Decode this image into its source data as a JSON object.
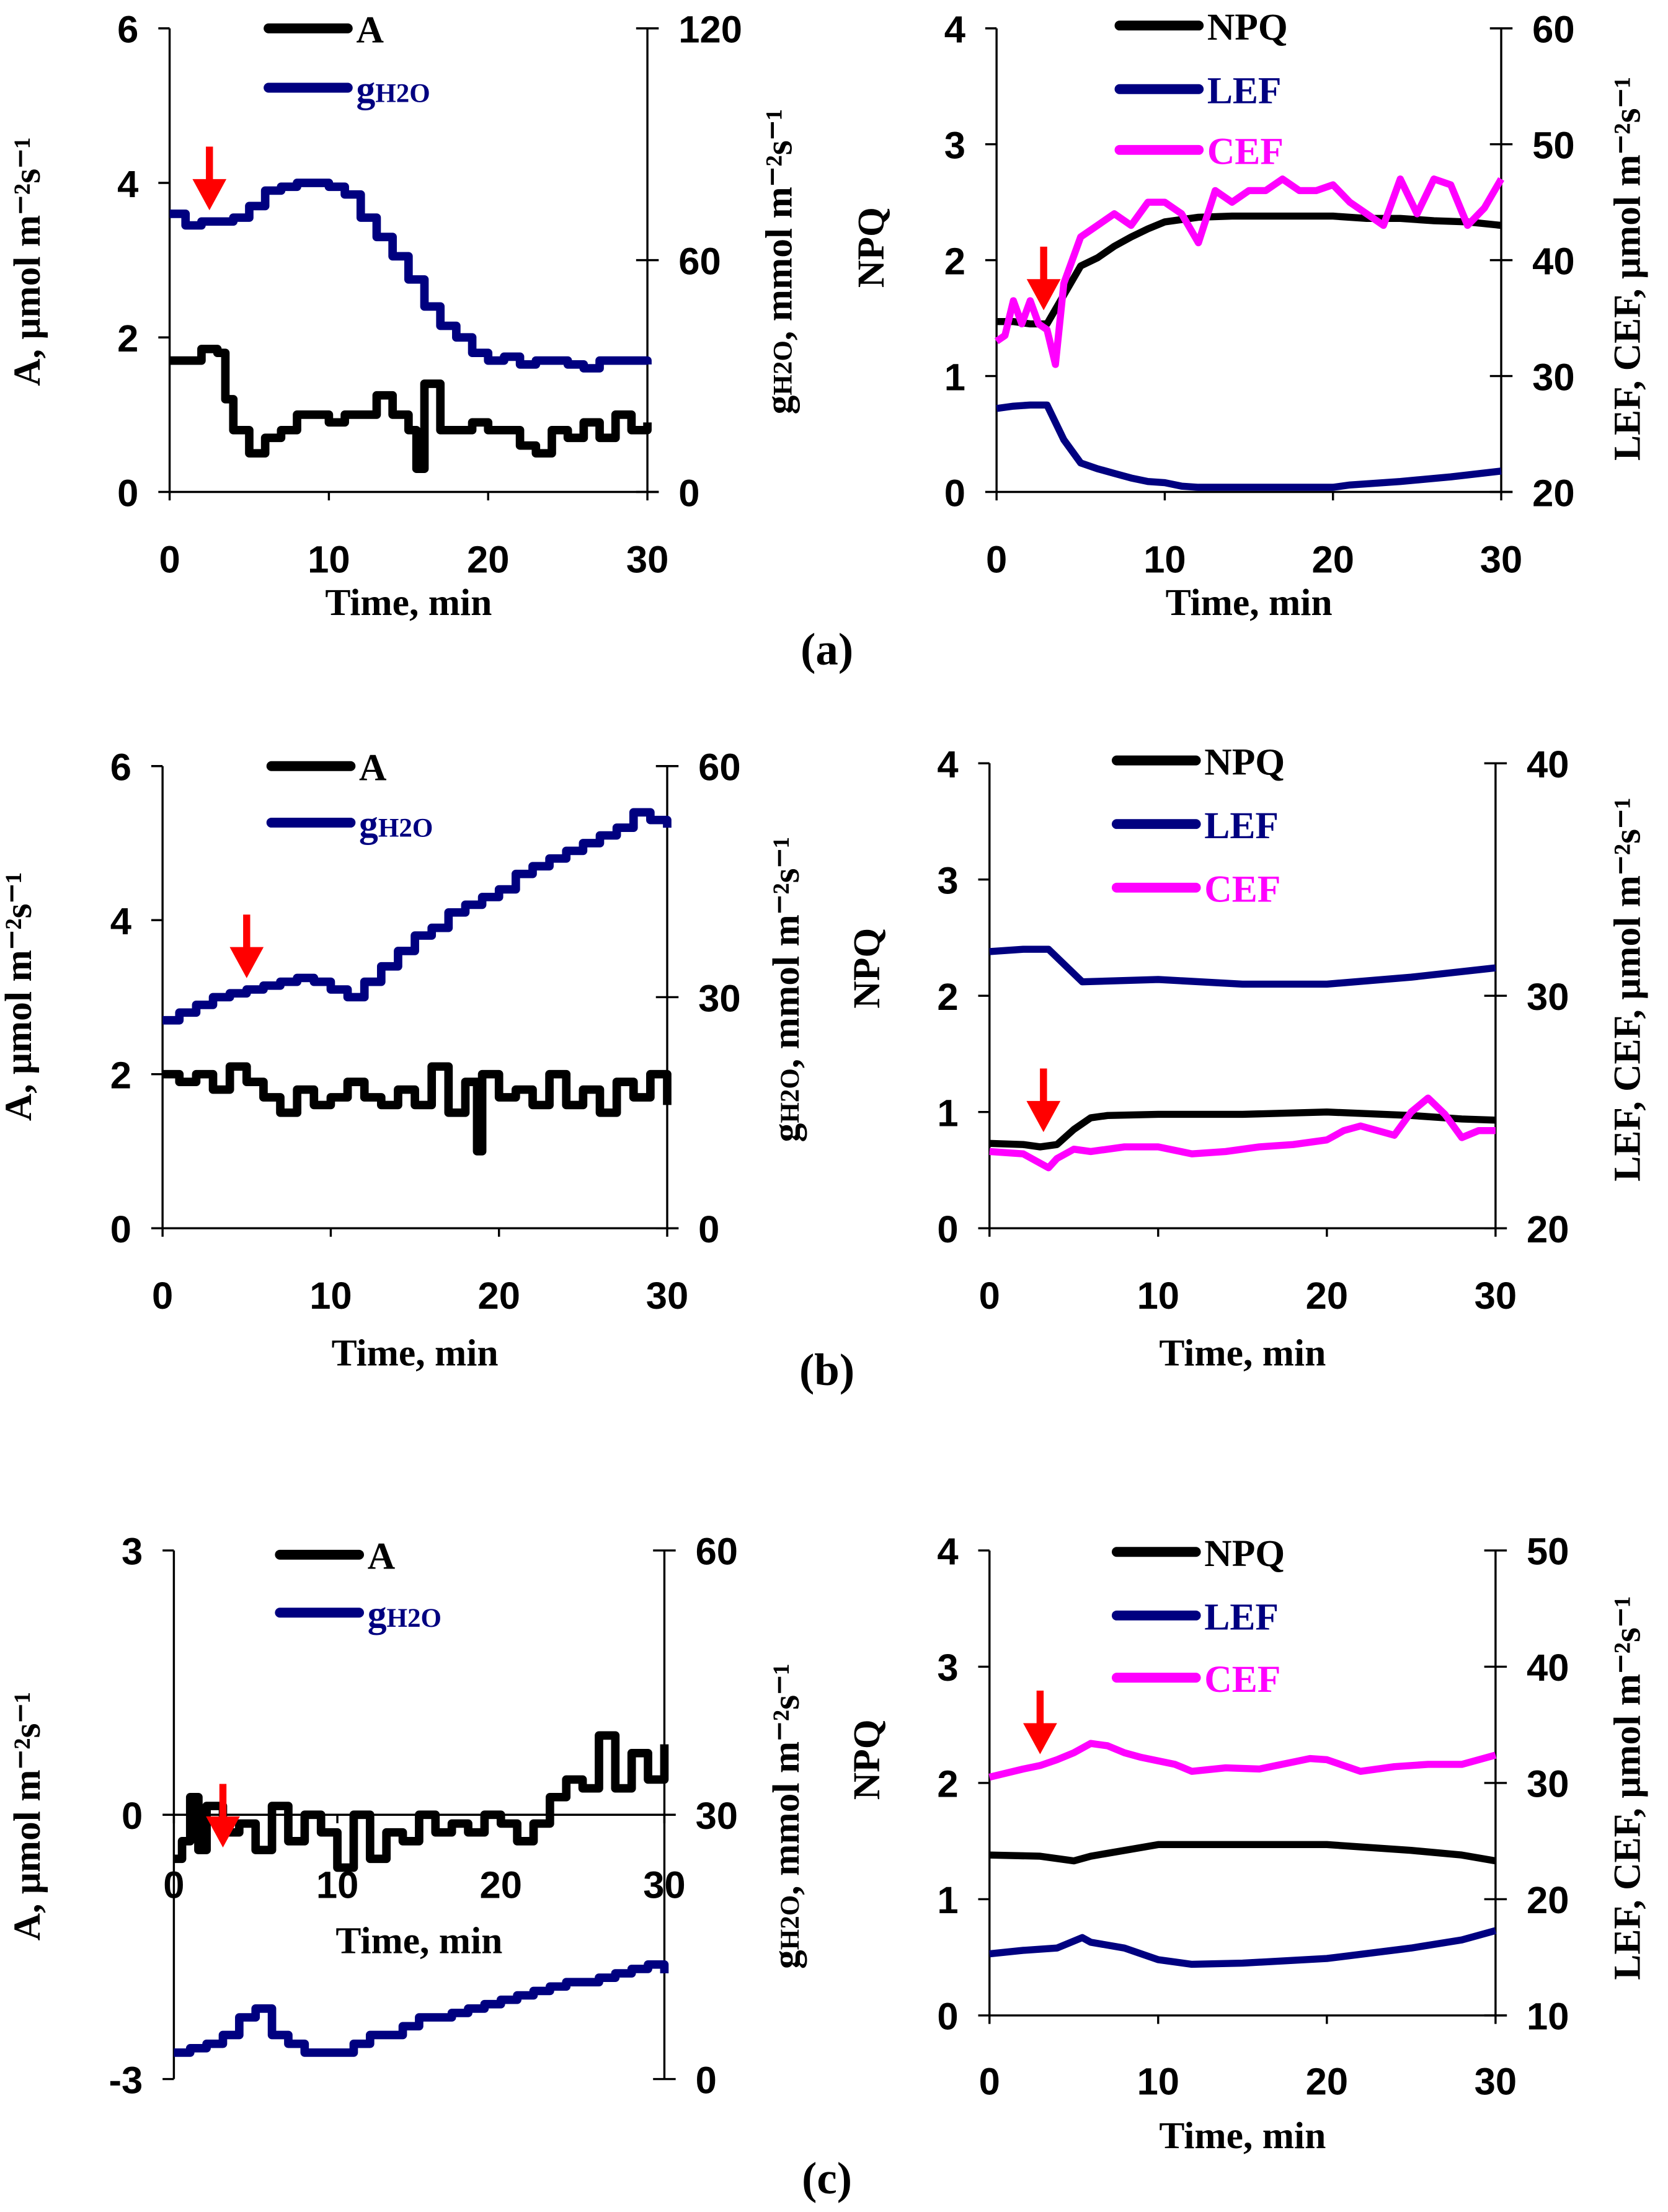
{
  "colors": {
    "A": "#000000",
    "g": "#000080",
    "NPQ": "#000000",
    "LEF": "#000080",
    "CEF": "#ff00ff",
    "arrow": "#ff0000"
  },
  "captions": [
    "(a)",
    "(b)",
    "(c)"
  ],
  "chart_data": [
    {
      "panel": "a-left",
      "type": "line",
      "xlabel": "Time, min",
      "ylabel_left": "A, μmol m⁻²s⁻¹",
      "ylabel_right": "gH2O, mmol m⁻²s⁻¹",
      "xlim": [
        0,
        30
      ],
      "xticks": [
        "0",
        "10",
        "20",
        "30"
      ],
      "ylim_left": [
        0,
        6
      ],
      "yticks_left": [
        "0",
        "2",
        "4",
        "6"
      ],
      "ylim_right": [
        0,
        120
      ],
      "yticks_right": [
        "0",
        "60",
        "120"
      ],
      "arrow_time": 2.5,
      "series": [
        {
          "name": "A",
          "axis": "left",
          "color_key": "A",
          "step": true,
          "x": [
            0,
            1,
            2,
            3,
            3.5,
            4,
            5,
            6,
            7,
            8,
            9,
            10,
            11,
            12,
            13,
            14,
            15,
            15.5,
            16,
            17,
            18,
            19,
            20,
            21,
            22,
            23,
            24,
            25,
            26,
            27,
            28,
            29,
            30
          ],
          "y": [
            1.7,
            1.7,
            1.85,
            1.8,
            1.2,
            0.8,
            0.5,
            0.7,
            0.8,
            1.0,
            1.0,
            0.9,
            1.0,
            1.0,
            1.25,
            1.0,
            0.8,
            0.3,
            1.4,
            0.8,
            0.8,
            0.9,
            0.8,
            0.8,
            0.6,
            0.5,
            0.8,
            0.7,
            0.9,
            0.7,
            1.0,
            0.8,
            0.9
          ]
        },
        {
          "name": "gH2O",
          "axis": "right",
          "color_key": "g",
          "step": true,
          "x": [
            0,
            1,
            2,
            3,
            4,
            5,
            6,
            7,
            8,
            9,
            10,
            11,
            12,
            13,
            14,
            15,
            16,
            17,
            18,
            19,
            20,
            21,
            22,
            23,
            24,
            25,
            26,
            27,
            28,
            29,
            30
          ],
          "y": [
            72,
            69,
            70,
            70,
            71,
            74,
            78,
            79,
            80,
            80,
            79,
            77,
            71,
            66,
            61,
            55,
            48,
            43,
            40,
            36,
            34,
            35,
            33,
            34,
            34,
            33,
            32,
            34,
            34,
            34,
            33
          ]
        }
      ]
    },
    {
      "panel": "a-right",
      "type": "line",
      "xlabel": "Time, min",
      "ylabel_left": "NPQ",
      "ylabel_right": "LEF, CEF, μmol m⁻²s⁻¹",
      "xlim": [
        0,
        30
      ],
      "xticks": [
        "0",
        "10",
        "20",
        "30"
      ],
      "ylim_left": [
        0,
        4
      ],
      "yticks_left": [
        "0",
        "1",
        "2",
        "3",
        "4"
      ],
      "ylim_right": [
        20,
        60
      ],
      "yticks_right": [
        "20",
        "30",
        "40",
        "50",
        "60"
      ],
      "arrow_time": 2.8,
      "series": [
        {
          "name": "NPQ",
          "axis": "left",
          "color_key": "NPQ",
          "x": [
            0,
            1,
            2,
            3,
            4,
            5,
            6,
            7,
            8,
            9,
            10,
            11,
            12,
            14,
            16,
            18,
            20,
            22,
            24,
            26,
            28,
            30
          ],
          "y": [
            1.47,
            1.47,
            1.45,
            1.45,
            1.7,
            1.95,
            2.02,
            2.12,
            2.2,
            2.27,
            2.33,
            2.35,
            2.37,
            2.38,
            2.38,
            2.38,
            2.38,
            2.36,
            2.36,
            2.34,
            2.33,
            2.3
          ]
        },
        {
          "name": "LEF",
          "axis": "right",
          "color_key": "LEF",
          "x": [
            0,
            1,
            2,
            3,
            4,
            5,
            6,
            7,
            8,
            9,
            10,
            11,
            12,
            14,
            16,
            18,
            20,
            21,
            24,
            27,
            30
          ],
          "y": [
            27.2,
            27.4,
            27.5,
            27.5,
            24.5,
            22.5,
            22.0,
            21.6,
            21.2,
            20.9,
            20.8,
            20.5,
            20.4,
            20.4,
            20.4,
            20.4,
            20.4,
            20.6,
            20.9,
            21.3,
            21.8
          ]
        },
        {
          "name": "CEF",
          "axis": "right",
          "color_key": "CEF",
          "x": [
            0,
            0.5,
            1,
            1.5,
            2,
            2.5,
            3,
            3.5,
            4,
            5,
            6,
            7,
            8,
            9,
            10,
            11,
            12,
            13,
            14,
            15,
            16,
            17,
            18,
            19,
            20,
            21,
            22,
            23,
            24,
            25,
            26,
            27,
            28,
            29,
            30
          ],
          "y": [
            33,
            33.5,
            36.5,
            34.5,
            36.5,
            34.5,
            34,
            31,
            38,
            42,
            43,
            44,
            43,
            45,
            45,
            44,
            41.5,
            46,
            45,
            46,
            46,
            47,
            46,
            46,
            46.5,
            45,
            44,
            43,
            47,
            44,
            47,
            46.5,
            43,
            44.5,
            47
          ]
        }
      ]
    },
    {
      "panel": "b-left",
      "type": "line",
      "xlabel": "Time, min",
      "ylabel_left": "A, μmol m⁻²s⁻¹",
      "ylabel_right": "gH2O, mmol m⁻²s⁻¹",
      "xlim": [
        0,
        30
      ],
      "xticks": [
        "0",
        "10",
        "20",
        "30"
      ],
      "ylim_left": [
        0,
        6
      ],
      "yticks_left": [
        "0",
        "2",
        "4",
        "6"
      ],
      "ylim_right": [
        0,
        60
      ],
      "yticks_right": [
        "0",
        "30",
        "60"
      ],
      "arrow_time": 5,
      "series": [
        {
          "name": "A",
          "axis": "left",
          "color_key": "A",
          "step": true,
          "x": [
            0,
            1,
            2,
            3,
            4,
            5,
            6,
            7,
            8,
            9,
            10,
            11,
            12,
            13,
            14,
            15,
            16,
            17,
            18,
            18.7,
            19,
            20,
            21,
            22,
            23,
            24,
            25,
            26,
            27,
            28,
            29,
            30
          ],
          "y": [
            2.0,
            1.9,
            2.0,
            1.8,
            2.1,
            1.9,
            1.7,
            1.5,
            1.8,
            1.6,
            1.7,
            1.9,
            1.7,
            1.6,
            1.8,
            1.6,
            2.1,
            1.5,
            1.9,
            1.0,
            2.0,
            1.7,
            1.8,
            1.6,
            2.0,
            1.6,
            1.8,
            1.5,
            1.9,
            1.7,
            2.0,
            1.6
          ]
        },
        {
          "name": "gH2O",
          "axis": "right",
          "color_key": "g",
          "step": true,
          "x": [
            0,
            1,
            2,
            3,
            4,
            5,
            6,
            7,
            8,
            9,
            10,
            11,
            12,
            13,
            14,
            15,
            16,
            17,
            18,
            19,
            20,
            21,
            22,
            23,
            24,
            25,
            26,
            27,
            28,
            29,
            30
          ],
          "y": [
            27,
            28,
            29,
            30,
            30.5,
            31,
            31.5,
            32,
            32.5,
            32,
            31,
            30,
            32,
            34,
            36,
            38,
            39,
            41,
            42,
            43,
            44,
            46,
            47,
            48,
            49,
            50,
            51,
            52,
            54,
            53,
            52
          ]
        }
      ]
    },
    {
      "panel": "b-right",
      "type": "line",
      "xlabel": "Time, min",
      "ylabel_left": "NPQ",
      "ylabel_right": "LEF, CEF, μmol m⁻²s⁻¹",
      "xlim": [
        0,
        30
      ],
      "xticks": [
        "0",
        "10",
        "20",
        "30"
      ],
      "ylim_left": [
        0,
        4
      ],
      "yticks_left": [
        "0",
        "1",
        "2",
        "3",
        "4"
      ],
      "ylim_right": [
        20,
        40
      ],
      "yticks_right": [
        "20",
        "30",
        "40"
      ],
      "arrow_time": 3.2,
      "series": [
        {
          "name": "NPQ",
          "axis": "left",
          "color_key": "NPQ",
          "x": [
            0,
            2,
            3,
            4,
            5,
            6,
            7,
            10,
            15,
            20,
            25,
            28,
            30
          ],
          "y": [
            0.73,
            0.72,
            0.7,
            0.72,
            0.85,
            0.95,
            0.97,
            0.98,
            0.98,
            1.0,
            0.97,
            0.94,
            0.93
          ]
        },
        {
          "name": "LEF",
          "axis": "right",
          "color_key": "LEF",
          "x": [
            0,
            2,
            3.5,
            4.5,
            5.5,
            10,
            15,
            20,
            25,
            30
          ],
          "y": [
            31.9,
            32.0,
            32.0,
            31.3,
            30.6,
            30.7,
            30.5,
            30.5,
            30.8,
            31.2
          ]
        },
        {
          "name": "CEF",
          "axis": "right",
          "color_key": "CEF",
          "x": [
            0,
            2,
            3,
            3.5,
            4,
            5,
            6,
            8,
            10,
            12,
            14,
            16,
            18,
            20,
            21,
            22,
            23,
            24,
            25,
            26,
            27,
            28,
            29,
            30
          ],
          "y": [
            23.3,
            23.2,
            22.8,
            22.6,
            23.0,
            23.4,
            23.3,
            23.5,
            23.5,
            23.2,
            23.3,
            23.5,
            23.6,
            23.8,
            24.2,
            24.4,
            24.2,
            24.0,
            25.0,
            25.6,
            24.9,
            23.9,
            24.2,
            24.2
          ]
        }
      ]
    },
    {
      "panel": "c-left",
      "type": "line",
      "xlabel": "Time, min",
      "ylabel_left": "A, μmol m⁻²s⁻¹",
      "ylabel_right": "gH2O, mmol m⁻²s⁻¹",
      "xlim": [
        0,
        30
      ],
      "xticks": [
        "0",
        "10",
        "20",
        "30"
      ],
      "ylim_left": [
        -3,
        3
      ],
      "yticks_left": [
        "-3",
        "0",
        "3"
      ],
      "ylim_right": [
        0,
        60
      ],
      "yticks_right": [
        "0",
        "30",
        "60"
      ],
      "arrow_time": 3,
      "series": [
        {
          "name": "A",
          "axis": "left",
          "color_key": "A",
          "step": true,
          "x": [
            0,
            0.5,
            1,
            1.5,
            2,
            3,
            4,
            5,
            6,
            7,
            8,
            9,
            10,
            11,
            12,
            13,
            14,
            15,
            16,
            17,
            18,
            19,
            20,
            21,
            22,
            23,
            24,
            25,
            26,
            27,
            28,
            29,
            30
          ],
          "y": [
            -0.5,
            -0.3,
            0.2,
            -0.4,
            0.1,
            -0.2,
            -0.1,
            -0.4,
            0.1,
            -0.3,
            0.0,
            -0.2,
            -0.6,
            0.0,
            -0.5,
            -0.2,
            -0.3,
            0.0,
            -0.2,
            -0.1,
            -0.2,
            0.0,
            -0.1,
            -0.3,
            -0.1,
            0.2,
            0.4,
            0.3,
            0.9,
            0.3,
            0.7,
            0.4,
            0.8
          ]
        },
        {
          "name": "gH2O",
          "axis": "right",
          "color_key": "g",
          "step": true,
          "x": [
            0,
            1,
            2,
            3,
            4,
            5,
            6,
            7,
            8,
            9,
            10,
            11,
            12,
            13,
            14,
            15,
            16,
            17,
            18,
            19,
            20,
            21,
            22,
            23,
            24,
            25,
            26,
            27,
            28,
            29,
            30
          ],
          "y": [
            3,
            3.5,
            4,
            5,
            7,
            8,
            5,
            4,
            3,
            3,
            3,
            4,
            5,
            5,
            6,
            7,
            7,
            7.5,
            8,
            8.5,
            9,
            9.5,
            10,
            10.5,
            11,
            11,
            11.5,
            12,
            12.5,
            13,
            12
          ]
        }
      ]
    },
    {
      "panel": "c-right",
      "type": "line",
      "xlabel": "Time, min",
      "ylabel_left": "NPQ",
      "ylabel_right": "LEF, CEF, μmol m⁻²s⁻¹",
      "xlim": [
        0,
        30
      ],
      "xticks": [
        "0",
        "10",
        "20",
        "30"
      ],
      "ylim_left": [
        0,
        4
      ],
      "yticks_left": [
        "0",
        "1",
        "2",
        "3",
        "4"
      ],
      "ylim_right": [
        10,
        50
      ],
      "yticks_right": [
        "10",
        "20",
        "30",
        "40",
        "50"
      ],
      "arrow_time": 3,
      "series": [
        {
          "name": "NPQ",
          "axis": "left",
          "color_key": "NPQ",
          "x": [
            0,
            3,
            5,
            6,
            8,
            10,
            15,
            20,
            25,
            28,
            30
          ],
          "y": [
            1.38,
            1.37,
            1.33,
            1.37,
            1.42,
            1.47,
            1.47,
            1.47,
            1.42,
            1.38,
            1.33
          ]
        },
        {
          "name": "LEF",
          "axis": "right",
          "color_key": "LEF",
          "x": [
            0,
            2,
            4,
            5.5,
            6,
            8,
            10,
            12,
            15,
            20,
            25,
            28,
            30
          ],
          "y": [
            15.3,
            15.6,
            15.8,
            16.7,
            16.3,
            15.8,
            14.8,
            14.4,
            14.5,
            14.9,
            15.8,
            16.5,
            17.3
          ]
        },
        {
          "name": "CEF",
          "axis": "right",
          "color_key": "CEF",
          "x": [
            0,
            2,
            3,
            4,
            5,
            6,
            7,
            8,
            9,
            10,
            11,
            12,
            14,
            16,
            18,
            19,
            20,
            21,
            22,
            24,
            26,
            28,
            30
          ],
          "y": [
            30.5,
            31.2,
            31.5,
            32.0,
            32.6,
            33.4,
            33.2,
            32.6,
            32.2,
            31.9,
            31.6,
            31.0,
            31.3,
            31.2,
            31.8,
            32.1,
            32.0,
            31.5,
            31.0,
            31.4,
            31.6,
            31.6,
            32.4
          ]
        }
      ]
    }
  ]
}
